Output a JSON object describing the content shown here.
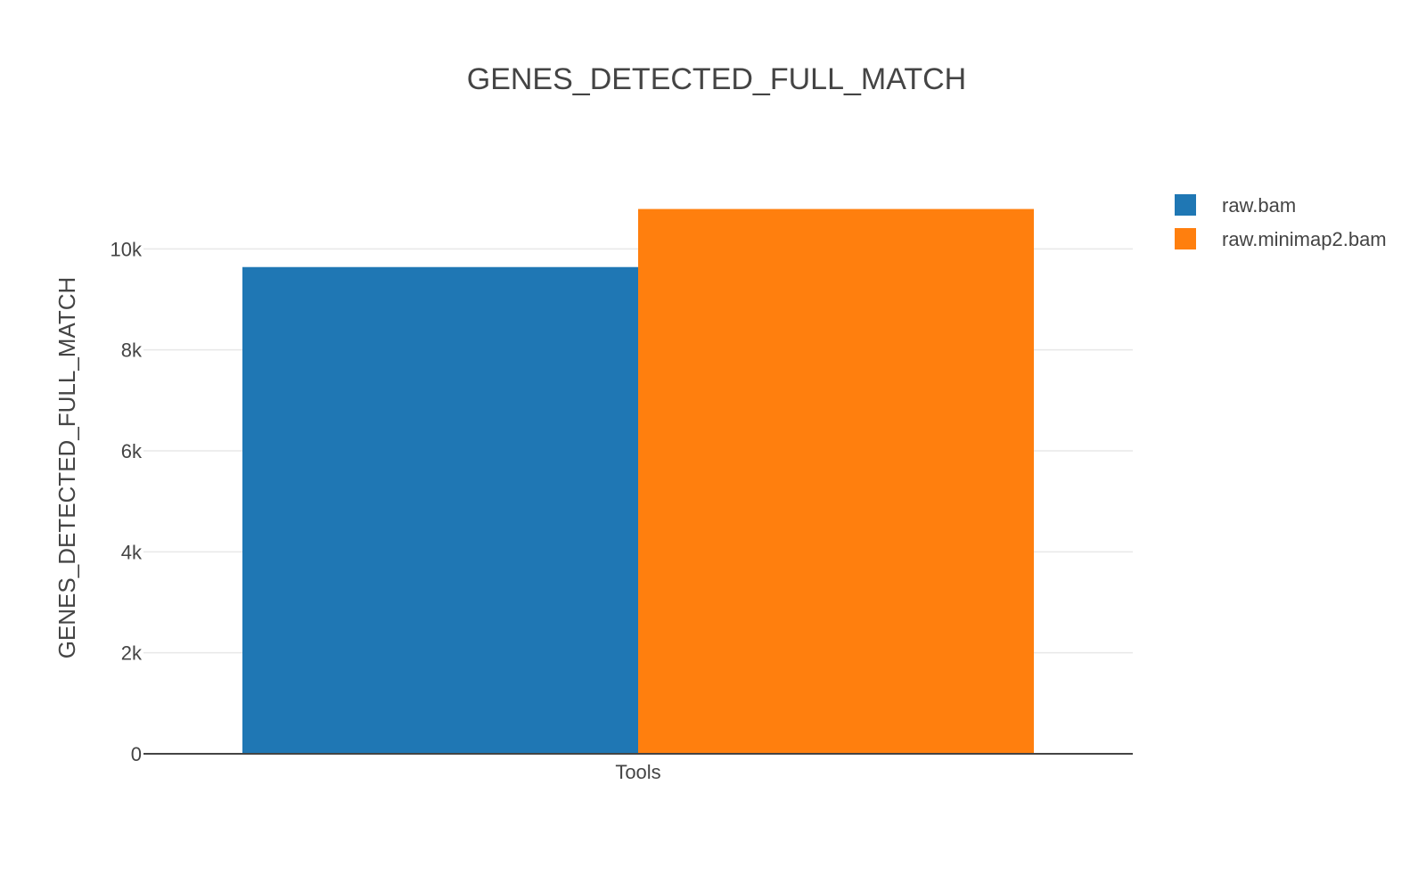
{
  "chart_data": {
    "type": "bar",
    "title": "GENES_DETECTED_FULL_MATCH",
    "ylabel": "GENES_DETECTED_FULL_MATCH",
    "xlabel": "",
    "categories": [
      "Tools"
    ],
    "series": [
      {
        "name": "raw.bam",
        "values": [
          9640
        ],
        "color": "#1f77b4"
      },
      {
        "name": "raw.minimap2.bam",
        "values": [
          10790
        ],
        "color": "#ff7f0e"
      }
    ],
    "ylim": [
      0,
      11400
    ],
    "yticks": [
      0,
      2000,
      4000,
      6000,
      8000,
      10000
    ],
    "ytick_labels": [
      "0",
      "2k",
      "4k",
      "6k",
      "8k",
      "10k"
    ],
    "grid": true,
    "legend_position": "top-right"
  }
}
